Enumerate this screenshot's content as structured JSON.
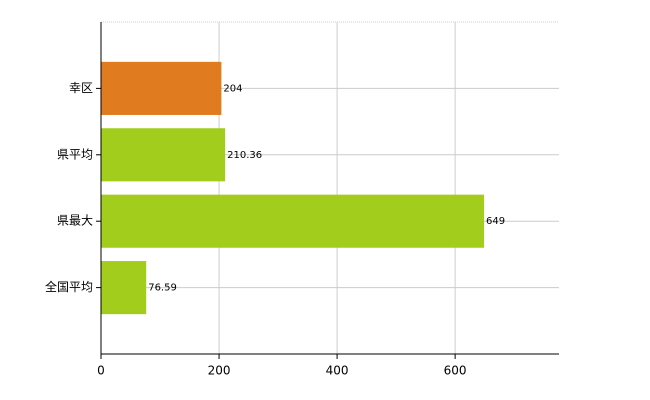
{
  "chart_data": {
    "type": "hbar",
    "categories": [
      "幸区",
      "県平均",
      "県最大",
      "全国平均"
    ],
    "values": [
      204,
      210.36,
      649,
      76.59
    ],
    "colors": [
      "#e07b20",
      "#a3cd1c",
      "#a3cd1c",
      "#a3cd1c"
    ],
    "xlim": [
      0,
      776
    ],
    "xticks": [
      0,
      200,
      400,
      600
    ],
    "grid": true
  }
}
